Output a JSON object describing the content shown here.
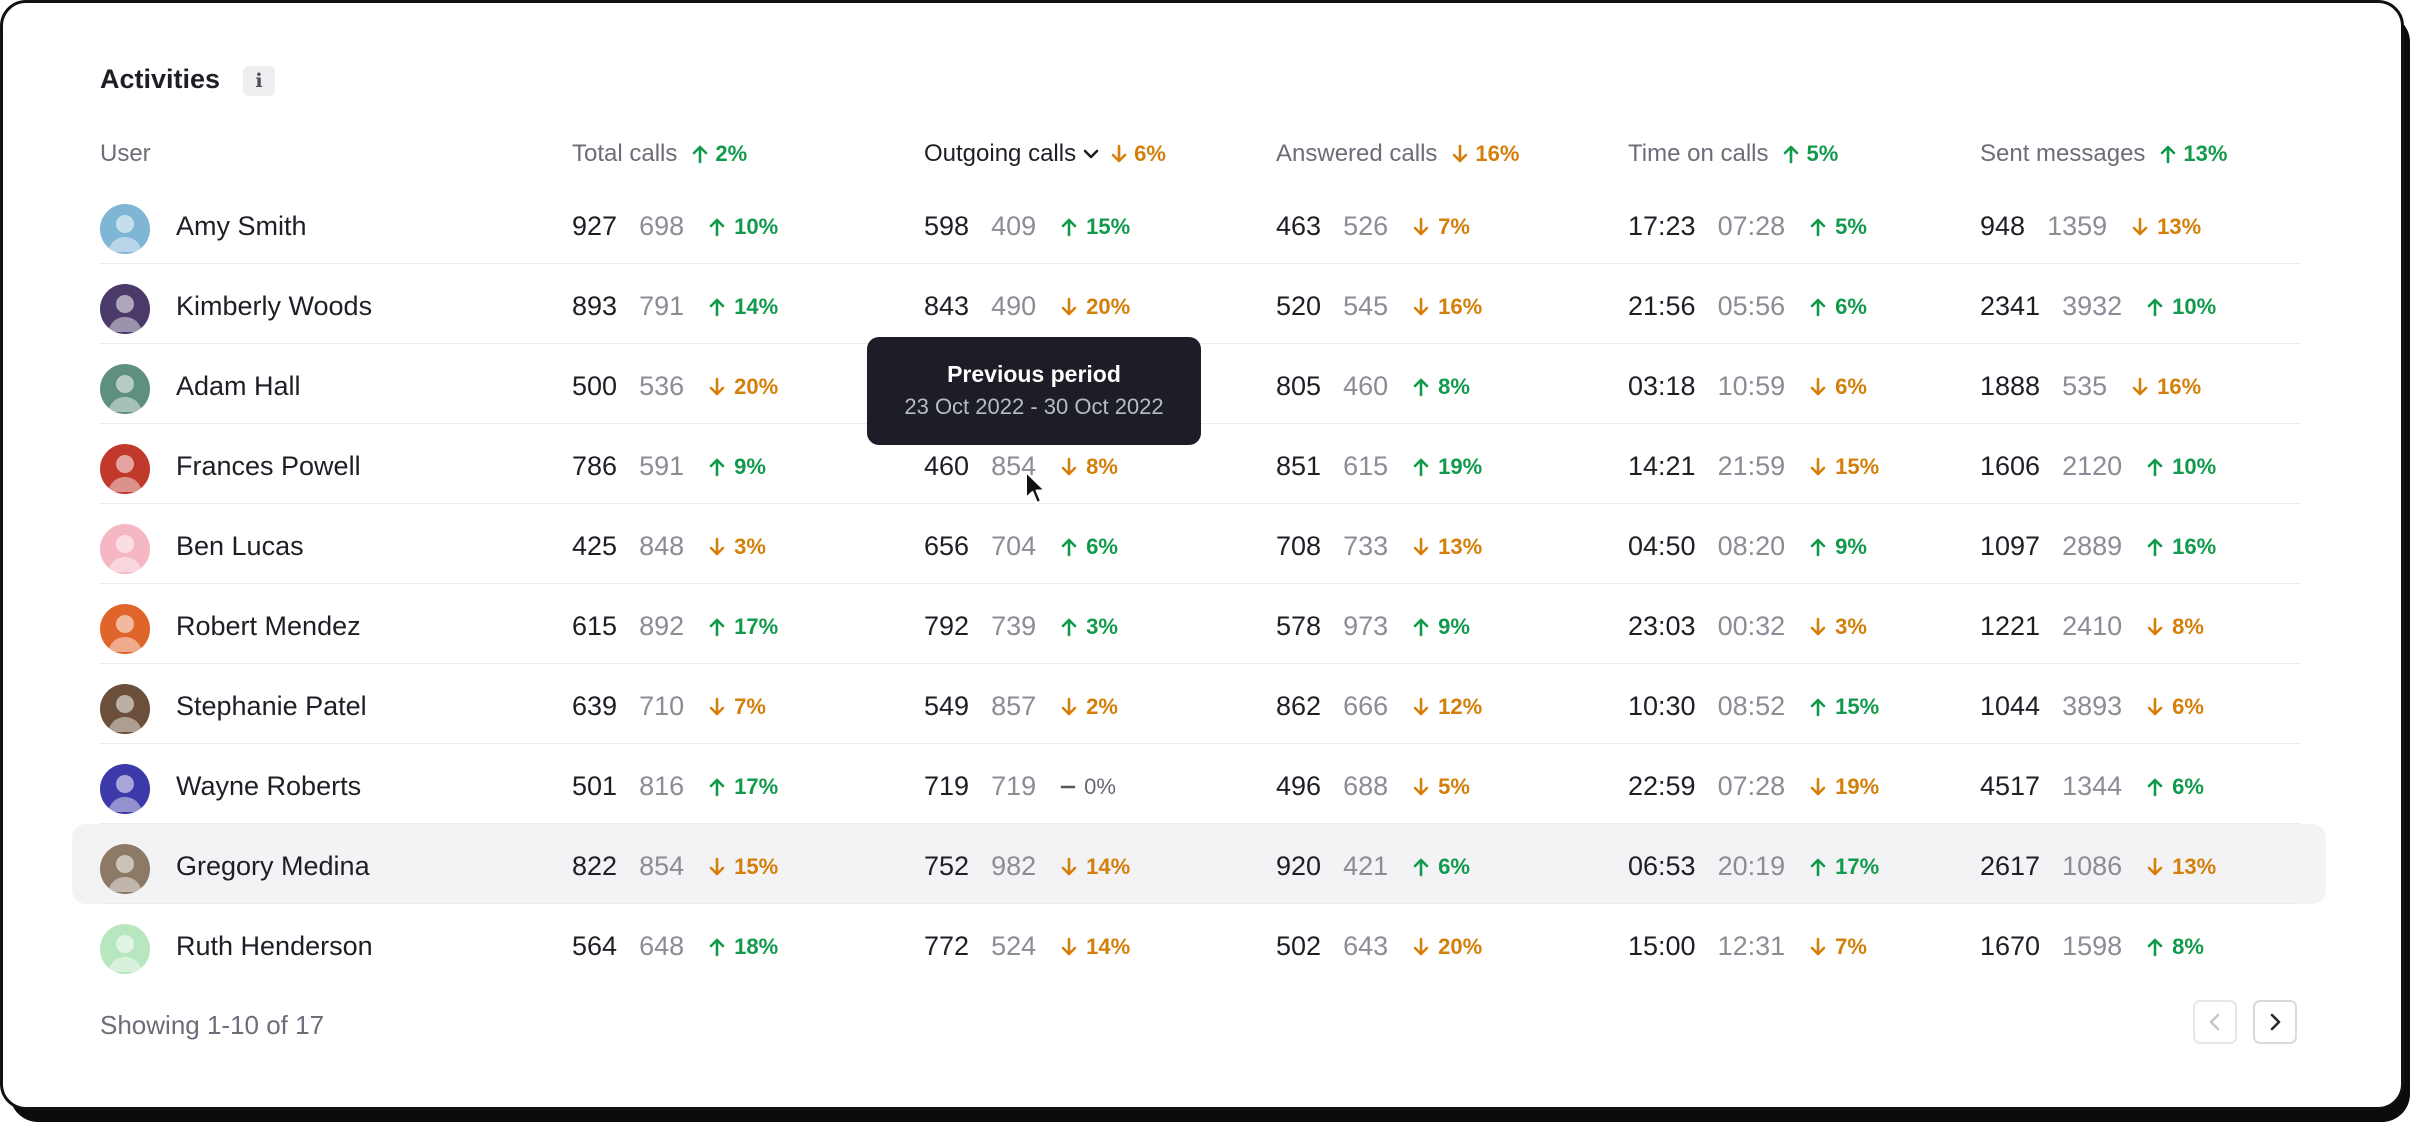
{
  "title": "Activities",
  "info_icon_text": "i",
  "columns": [
    {
      "label": "User"
    },
    {
      "label": "Total calls",
      "change": "2%",
      "dir": "up"
    },
    {
      "label": "Outgoing calls",
      "change": "6%",
      "dir": "down",
      "sorted": true
    },
    {
      "label": "Answered calls",
      "change": "16%",
      "dir": "down"
    },
    {
      "label": "Time on calls",
      "change": "5%",
      "dir": "up"
    },
    {
      "label": "Sent messages",
      "change": "13%",
      "dir": "up"
    }
  ],
  "rows": [
    {
      "name": "Amy Smith",
      "avatar_color": "#7fb5d5",
      "metrics": [
        {
          "cur": "927",
          "prev": "698",
          "change": "10%",
          "dir": "up"
        },
        {
          "cur": "598",
          "prev": "409",
          "change": "15%",
          "dir": "up"
        },
        {
          "cur": "463",
          "prev": "526",
          "change": "7%",
          "dir": "down"
        },
        {
          "cur": "17:23",
          "prev": "07:28",
          "change": "5%",
          "dir": "up"
        },
        {
          "cur": "948",
          "prev": "1359",
          "change": "13%",
          "dir": "down"
        }
      ]
    },
    {
      "name": "Kimberly Woods",
      "avatar_color": "#4a3a6a",
      "metrics": [
        {
          "cur": "893",
          "prev": "791",
          "change": "14%",
          "dir": "up"
        },
        {
          "cur": "843",
          "prev": "490",
          "change": "20%",
          "dir": "down"
        },
        {
          "cur": "520",
          "prev": "545",
          "change": "16%",
          "dir": "down"
        },
        {
          "cur": "21:56",
          "prev": "05:56",
          "change": "6%",
          "dir": "up"
        },
        {
          "cur": "2341",
          "prev": "3932",
          "change": "10%",
          "dir": "up"
        }
      ]
    },
    {
      "name": "Adam Hall",
      "avatar_color": "#5f8f80",
      "metrics": [
        {
          "cur": "500",
          "prev": "536",
          "change": "20%",
          "dir": "down"
        },
        {
          "cur": "",
          "prev": "",
          "change": "",
          "dir": "none"
        },
        {
          "cur": "805",
          "prev": "460",
          "change": "8%",
          "dir": "up"
        },
        {
          "cur": "03:18",
          "prev": "10:59",
          "change": "6%",
          "dir": "down"
        },
        {
          "cur": "1888",
          "prev": "535",
          "change": "16%",
          "dir": "down"
        }
      ]
    },
    {
      "name": "Frances Powell",
      "avatar_color": "#c0392b",
      "metrics": [
        {
          "cur": "786",
          "prev": "591",
          "change": "9%",
          "dir": "up"
        },
        {
          "cur": "460",
          "prev": "854",
          "change": "8%",
          "dir": "down"
        },
        {
          "cur": "851",
          "prev": "615",
          "change": "19%",
          "dir": "up"
        },
        {
          "cur": "14:21",
          "prev": "21:59",
          "change": "15%",
          "dir": "down"
        },
        {
          "cur": "1606",
          "prev": "2120",
          "change": "10%",
          "dir": "up"
        }
      ]
    },
    {
      "name": "Ben Lucas",
      "avatar_color": "#f6b7c4",
      "metrics": [
        {
          "cur": "425",
          "prev": "848",
          "change": "3%",
          "dir": "down"
        },
        {
          "cur": "656",
          "prev": "704",
          "change": "6%",
          "dir": "up"
        },
        {
          "cur": "708",
          "prev": "733",
          "change": "13%",
          "dir": "down"
        },
        {
          "cur": "04:50",
          "prev": "08:20",
          "change": "9%",
          "dir": "up"
        },
        {
          "cur": "1097",
          "prev": "2889",
          "change": "16%",
          "dir": "up"
        }
      ]
    },
    {
      "name": "Robert Mendez",
      "avatar_color": "#e0652a",
      "metrics": [
        {
          "cur": "615",
          "prev": "892",
          "change": "17%",
          "dir": "up"
        },
        {
          "cur": "792",
          "prev": "739",
          "change": "3%",
          "dir": "up"
        },
        {
          "cur": "578",
          "prev": "973",
          "change": "9%",
          "dir": "up"
        },
        {
          "cur": "23:03",
          "prev": "00:32",
          "change": "3%",
          "dir": "down"
        },
        {
          "cur": "1221",
          "prev": "2410",
          "change": "8%",
          "dir": "down"
        }
      ]
    },
    {
      "name": "Stephanie Patel",
      "avatar_color": "#6b4f3a",
      "metrics": [
        {
          "cur": "639",
          "prev": "710",
          "change": "7%",
          "dir": "down"
        },
        {
          "cur": "549",
          "prev": "857",
          "change": "2%",
          "dir": "down"
        },
        {
          "cur": "862",
          "prev": "666",
          "change": "12%",
          "dir": "down"
        },
        {
          "cur": "10:30",
          "prev": "08:52",
          "change": "15%",
          "dir": "up"
        },
        {
          "cur": "1044",
          "prev": "3893",
          "change": "6%",
          "dir": "down"
        }
      ]
    },
    {
      "name": "Wayne Roberts",
      "avatar_color": "#3b3aa8",
      "metrics": [
        {
          "cur": "501",
          "prev": "816",
          "change": "17%",
          "dir": "up"
        },
        {
          "cur": "719",
          "prev": "719",
          "change": "0%",
          "dir": "flat"
        },
        {
          "cur": "496",
          "prev": "688",
          "change": "5%",
          "dir": "down"
        },
        {
          "cur": "22:59",
          "prev": "07:28",
          "change": "19%",
          "dir": "down"
        },
        {
          "cur": "4517",
          "prev": "1344",
          "change": "6%",
          "dir": "up"
        }
      ]
    },
    {
      "name": "Gregory Medina",
      "avatar_color": "#8c7a66",
      "metrics": [
        {
          "cur": "822",
          "prev": "854",
          "change": "15%",
          "dir": "down"
        },
        {
          "cur": "752",
          "prev": "982",
          "change": "14%",
          "dir": "down"
        },
        {
          "cur": "920",
          "prev": "421",
          "change": "6%",
          "dir": "up"
        },
        {
          "cur": "06:53",
          "prev": "20:19",
          "change": "17%",
          "dir": "up"
        },
        {
          "cur": "2617",
          "prev": "1086",
          "change": "13%",
          "dir": "down"
        }
      ]
    },
    {
      "name": "Ruth Henderson",
      "avatar_color": "#b8e6bf",
      "metrics": [
        {
          "cur": "564",
          "prev": "648",
          "change": "18%",
          "dir": "up"
        },
        {
          "cur": "772",
          "prev": "524",
          "change": "14%",
          "dir": "down"
        },
        {
          "cur": "502",
          "prev": "643",
          "change": "20%",
          "dir": "down"
        },
        {
          "cur": "15:00",
          "prev": "12:31",
          "change": "7%",
          "dir": "down"
        },
        {
          "cur": "1670",
          "prev": "1598",
          "change": "8%",
          "dir": "up"
        }
      ]
    }
  ],
  "footer": {
    "showing": "Showing 1-10 of 17"
  },
  "tooltip": {
    "title": "Previous period",
    "range": "23 Oct 2022 - 30 Oct 2022"
  },
  "colors": {
    "up": "#119a4b",
    "down": "#d47f0a",
    "highlight_row": "#f3f3f5"
  },
  "icons": {
    "info": "info-icon",
    "sort": "chevron-down-icon",
    "prev_page": "chevron-left-icon",
    "next_page": "chevron-right-icon"
  }
}
